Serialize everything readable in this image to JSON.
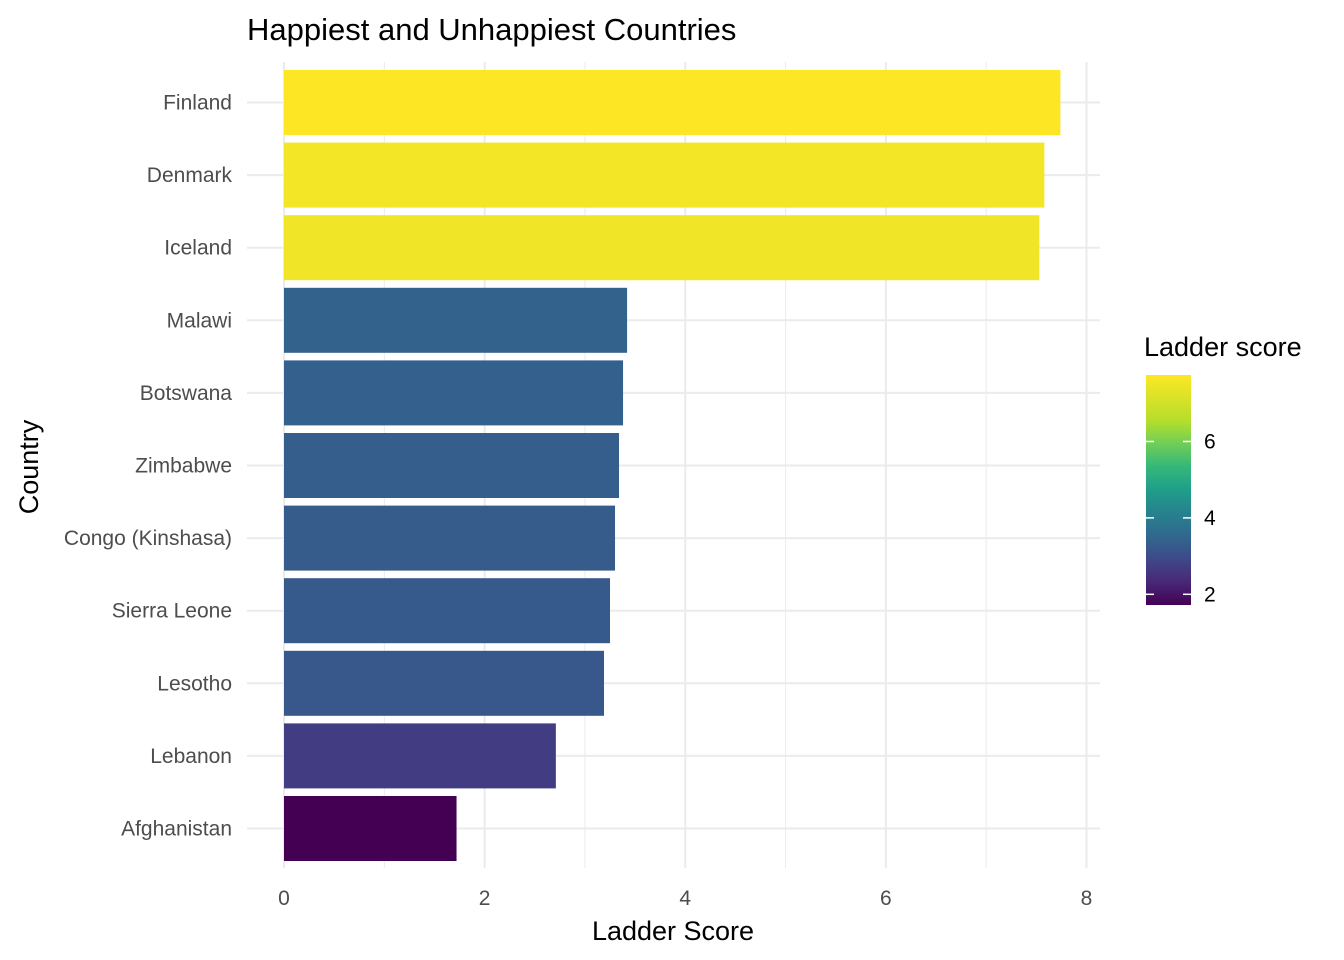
{
  "chart_data": {
    "type": "bar",
    "orientation": "horizontal",
    "title": "Happiest and Unhappiest Countries",
    "xlabel": "Ladder Score",
    "ylabel": "Country",
    "categories": [
      "Finland",
      "Denmark",
      "Iceland",
      "Malawi",
      "Botswana",
      "Zimbabwe",
      "Congo (Kinshasa)",
      "Sierra Leone",
      "Lesotho",
      "Lebanon",
      "Afghanistan"
    ],
    "values": [
      7.74,
      7.58,
      7.53,
      3.42,
      3.38,
      3.34,
      3.3,
      3.25,
      3.19,
      2.71,
      1.72
    ],
    "xlim": [
      0,
      8.1
    ],
    "xticks": [
      0,
      2,
      4,
      6,
      8
    ],
    "grid": true,
    "legend": {
      "title": "Ladder score",
      "placement": "right",
      "type": "colorbar",
      "range": [
        1.72,
        7.74
      ],
      "ticks": [
        2,
        4,
        6
      ],
      "colormap": "viridis"
    }
  }
}
